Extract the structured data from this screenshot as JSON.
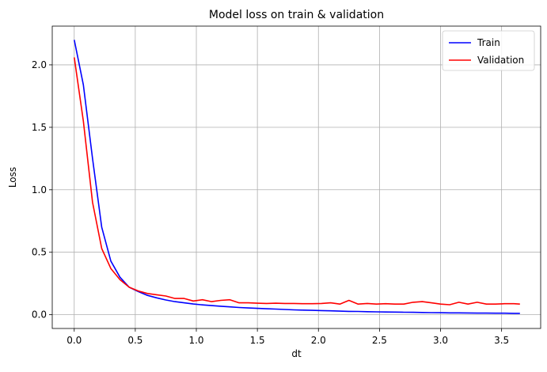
{
  "chart_data": {
    "type": "line",
    "title": "Model loss on train & validation",
    "xlabel": "dt",
    "ylabel": "Loss",
    "xlim": [
      -0.18,
      3.82
    ],
    "ylim": [
      -0.11,
      2.31
    ],
    "xticks": [
      0.0,
      0.5,
      1.0,
      1.5,
      2.0,
      2.5,
      3.0,
      3.5
    ],
    "xtick_labels": [
      "0.0",
      "0.5",
      "1.0",
      "1.5",
      "2.0",
      "2.5",
      "3.0",
      "3.5"
    ],
    "yticks": [
      0.0,
      0.5,
      1.0,
      1.5,
      2.0
    ],
    "ytick_labels": [
      "0.0",
      "0.5",
      "1.0",
      "1.5",
      "2.0"
    ],
    "grid": true,
    "legend_position": "top-right",
    "series": [
      {
        "name": "Train",
        "color": "#0000ff",
        "x": [
          0.0,
          0.075,
          0.15,
          0.225,
          0.3,
          0.375,
          0.45,
          0.525,
          0.6,
          0.675,
          0.75,
          0.825,
          0.9,
          0.975,
          1.05,
          1.125,
          1.2,
          1.275,
          1.35,
          1.425,
          1.5,
          1.575,
          1.65,
          1.725,
          1.8,
          1.875,
          1.95,
          2.025,
          2.1,
          2.175,
          2.25,
          2.325,
          2.4,
          2.475,
          2.55,
          2.625,
          2.7,
          2.775,
          2.85,
          2.925,
          3.0,
          3.075,
          3.15,
          3.225,
          3.3,
          3.375,
          3.45,
          3.525,
          3.6,
          3.65
        ],
        "values": [
          2.2,
          1.84,
          1.25,
          0.7,
          0.43,
          0.3,
          0.22,
          0.185,
          0.155,
          0.135,
          0.118,
          0.105,
          0.095,
          0.086,
          0.079,
          0.073,
          0.068,
          0.063,
          0.058,
          0.054,
          0.051,
          0.048,
          0.045,
          0.042,
          0.039,
          0.037,
          0.035,
          0.033,
          0.031,
          0.029,
          0.027,
          0.026,
          0.024,
          0.023,
          0.022,
          0.021,
          0.02,
          0.019,
          0.018,
          0.017,
          0.016,
          0.015,
          0.015,
          0.014,
          0.013,
          0.013,
          0.012,
          0.012,
          0.011,
          0.011
        ]
      },
      {
        "name": "Validation",
        "color": "#ff0000",
        "x": [
          0.0,
          0.075,
          0.15,
          0.225,
          0.3,
          0.375,
          0.45,
          0.525,
          0.6,
          0.675,
          0.75,
          0.825,
          0.9,
          0.975,
          1.05,
          1.125,
          1.2,
          1.275,
          1.35,
          1.425,
          1.5,
          1.575,
          1.65,
          1.725,
          1.8,
          1.875,
          1.95,
          2.025,
          2.1,
          2.175,
          2.25,
          2.325,
          2.4,
          2.475,
          2.55,
          2.625,
          2.7,
          2.775,
          2.85,
          2.925,
          3.0,
          3.075,
          3.15,
          3.225,
          3.3,
          3.375,
          3.45,
          3.525,
          3.6,
          3.65
        ],
        "values": [
          2.06,
          1.55,
          0.9,
          0.53,
          0.37,
          0.28,
          0.22,
          0.19,
          0.17,
          0.16,
          0.15,
          0.13,
          0.13,
          0.11,
          0.12,
          0.105,
          0.115,
          0.12,
          0.095,
          0.095,
          0.092,
          0.09,
          0.092,
          0.09,
          0.09,
          0.088,
          0.088,
          0.09,
          0.095,
          0.085,
          0.115,
          0.085,
          0.09,
          0.085,
          0.088,
          0.085,
          0.085,
          0.1,
          0.105,
          0.095,
          0.085,
          0.08,
          0.1,
          0.085,
          0.1,
          0.085,
          0.085,
          0.088,
          0.088,
          0.085
        ]
      }
    ]
  }
}
